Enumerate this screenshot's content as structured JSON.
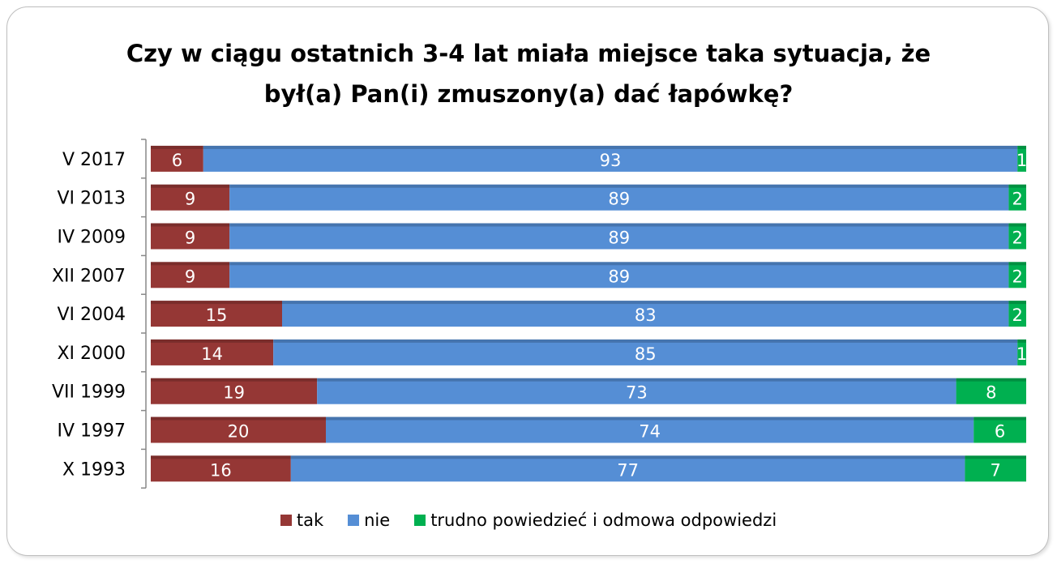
{
  "chart_data": {
    "type": "stacked-barh",
    "title": [
      "Czy w ciągu ostatnich 3-4 lat miała miejsce taka sytuacja, że",
      "był(a) Pan(i) zmuszony(a) dać łapówkę?"
    ],
    "categories": [
      "V 2017",
      "VI 2013",
      "IV 2009",
      "XII 2007",
      "VI 2004",
      "XI 2000",
      "VII 1999",
      "IV 1997",
      "X 1993"
    ],
    "series": [
      {
        "name": "tak",
        "color": "#953735",
        "values": [
          6,
          9,
          9,
          9,
          15,
          14,
          19,
          20,
          16
        ]
      },
      {
        "name": "nie",
        "color": "#558ed5",
        "values": [
          93,
          89,
          89,
          89,
          83,
          85,
          73,
          74,
          77
        ]
      },
      {
        "name": "trudno powiedzieć i odmowa odpowiedzi",
        "color": "#00b050",
        "values": [
          1,
          2,
          2,
          2,
          2,
          1,
          8,
          6,
          7
        ]
      }
    ]
  }
}
